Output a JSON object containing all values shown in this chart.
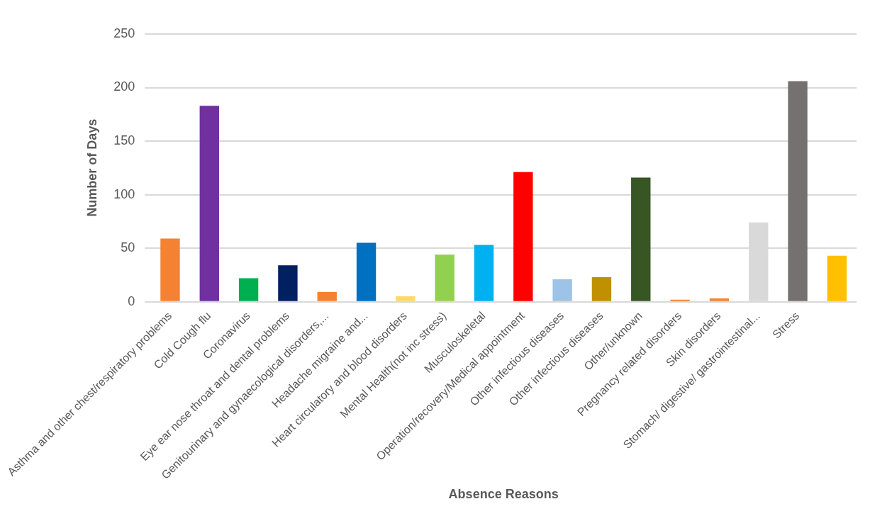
{
  "chart_data": {
    "type": "bar",
    "xlabel": "Absence Reasons",
    "ylabel": "Number of Days",
    "categories": [
      "Asthma and other chest/respiratory problems",
      "Cold Cough flu",
      "Coronavirus",
      "Eye ear nose throat and dental problems",
      "Genitourinary and gynaecological disorders,...",
      "Headache migraine and...",
      "Heart circulatory and blood disorders",
      "Mental Health(not inc stress)",
      "Musculoskeletal",
      "Operation/recovery/Medical appointment",
      "Other infectious diseases",
      "Other infectious diseases",
      "Other/unknown",
      "Pregnancy related disorders",
      "Skin disorders",
      "Stomach/ digestive/ gastrointestinal...",
      "Stress",
      null
    ],
    "values": [
      59,
      183,
      22,
      34,
      9,
      55,
      5,
      44,
      53,
      121,
      21,
      23,
      116,
      2,
      3,
      74,
      206,
      43
    ],
    "colors": [
      "#f58232",
      "#7030a0",
      "#00b050",
      "#002060",
      "#f58232",
      "#0070c0",
      "#ffd966",
      "#92d050",
      "#00b0f0",
      "#ff0000",
      "#9dc3e6",
      "#bf9000",
      "#375623",
      "#f58232",
      "#f58232",
      "#d9d9d9",
      "#767171",
      "#ffc000"
    ],
    "ylim": [
      0,
      250
    ],
    "yticks": [
      0,
      50,
      100,
      150,
      200,
      250
    ],
    "grid": "y",
    "legend": false
  }
}
